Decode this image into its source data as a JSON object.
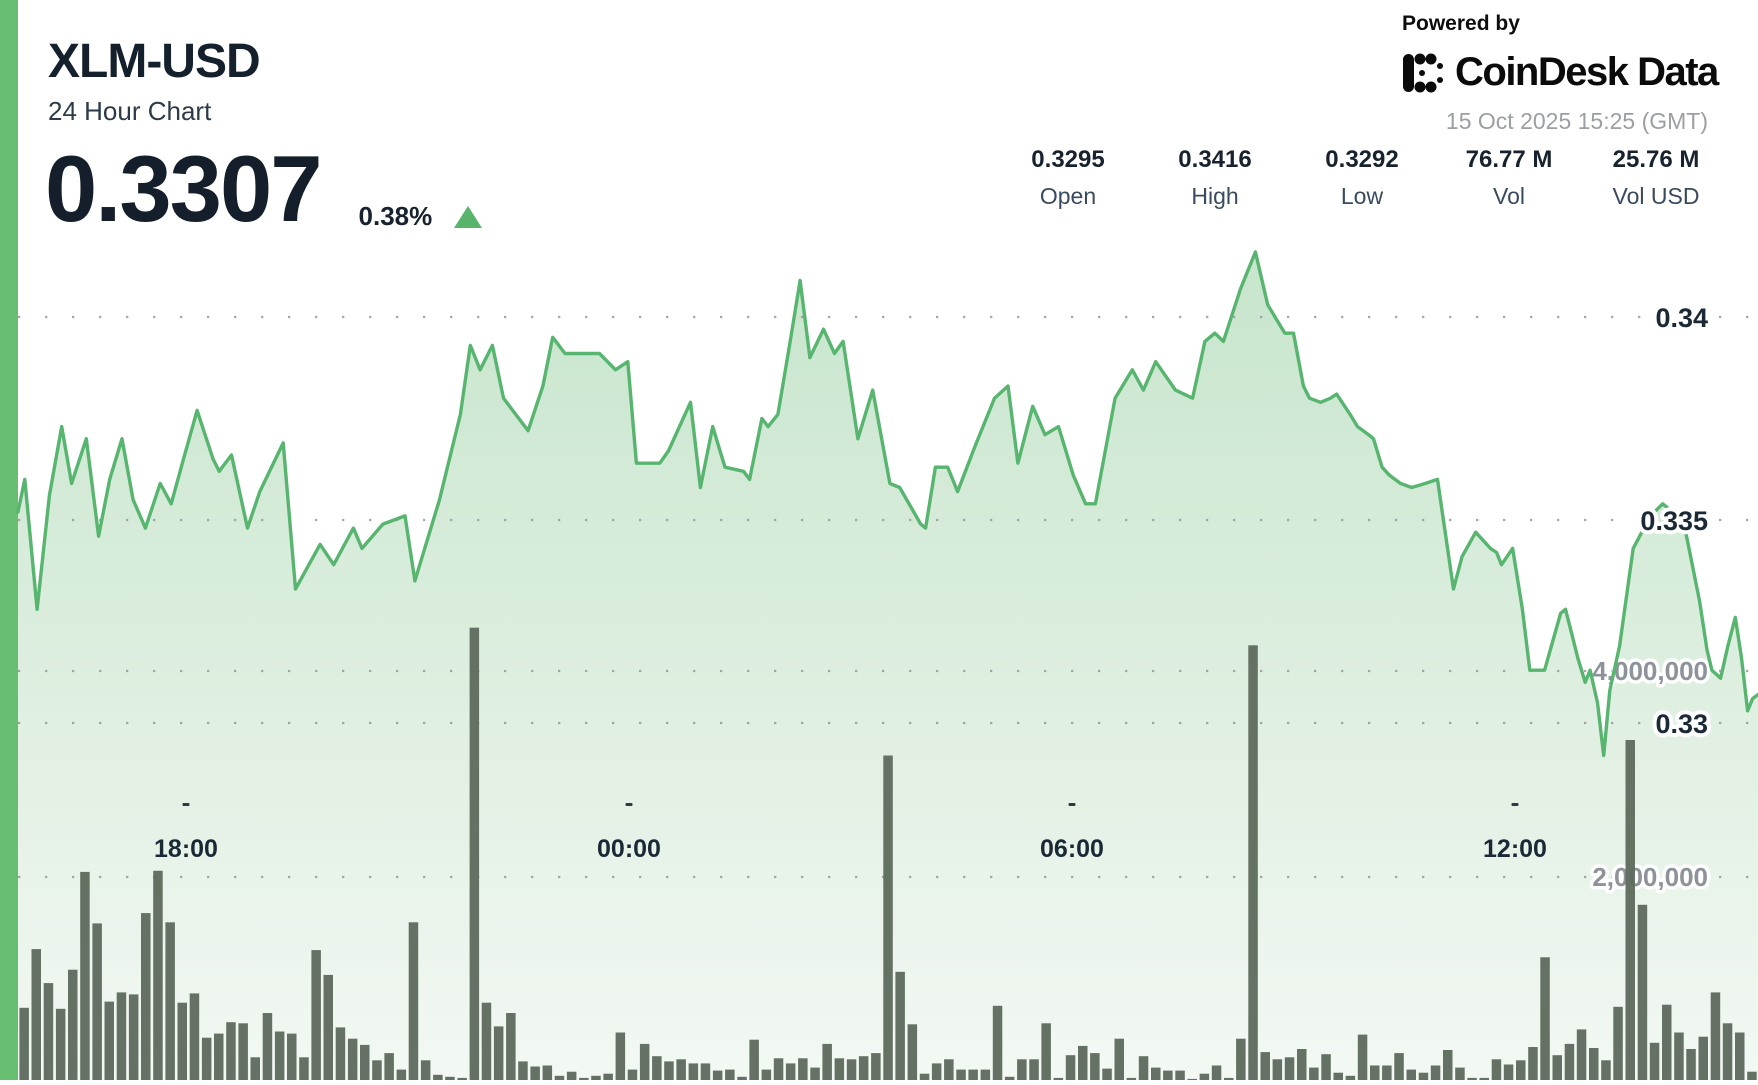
{
  "header": {
    "symbol": "XLM-USD",
    "subtitle": "24 Hour Chart",
    "price": "0.3307",
    "change_percent": "0.38%",
    "change_direction": "up"
  },
  "branding": {
    "powered_by": "Powered by",
    "logo_text": "CoinDesk Data",
    "timestamp": "15 Oct 2025 15:25 (GMT)"
  },
  "stats": [
    {
      "value": "0.3295",
      "label": "Open"
    },
    {
      "value": "0.3416",
      "label": "High"
    },
    {
      "value": "0.3292",
      "label": "Low"
    },
    {
      "value": "76.77 M",
      "label": "Vol"
    },
    {
      "value": "25.76 M",
      "label": "Vol USD"
    }
  ],
  "colors": {
    "accent_bar": "#67bd70",
    "line": "#57b56f",
    "area_top": "#c7e5cc",
    "area_bottom": "#f3f8f3",
    "volume_bar": "#5d6a5d",
    "grid_dot": "#97999b",
    "price_label": "#1b2836",
    "volume_label": "#8d939a",
    "timestamp": "#9b9fa4",
    "up_triangle": "#57b46a"
  },
  "chart_data": [
    {
      "type": "area",
      "name": "XLM-USD price, 24 hour window",
      "x_unit": "minutes since window start (15:25 GMT previous day)",
      "x_range": [
        18,
        1433
      ],
      "x_ticks": [
        {
          "label": "18:00",
          "t": 155
        },
        {
          "label": "00:00",
          "t": 515
        },
        {
          "label": "06:00",
          "t": 875
        },
        {
          "label": "12:00",
          "t": 1235
        }
      ],
      "y_axis_side": "right",
      "y_ticks": [
        {
          "label": "0.34",
          "value": 0.34
        },
        {
          "label": "0.335",
          "value": 0.335
        },
        {
          "label": "0.33",
          "value": 0.33
        }
      ],
      "grid": "dotted",
      "legend": "none",
      "points": [
        [
          18,
          0.3352
        ],
        [
          24,
          0.336
        ],
        [
          34,
          0.3328
        ],
        [
          44,
          0.3356
        ],
        [
          54,
          0.3373
        ],
        [
          62,
          0.3359
        ],
        [
          74,
          0.337
        ],
        [
          84,
          0.3346
        ],
        [
          93,
          0.336
        ],
        [
          103,
          0.337
        ],
        [
          112,
          0.3355
        ],
        [
          122,
          0.3348
        ],
        [
          134,
          0.3359
        ],
        [
          143,
          0.3354
        ],
        [
          153,
          0.3365
        ],
        [
          164,
          0.3377
        ],
        [
          177,
          0.3365
        ],
        [
          182,
          0.3362
        ],
        [
          192,
          0.3366
        ],
        [
          205,
          0.3348
        ],
        [
          215,
          0.3357
        ],
        [
          234,
          0.3369
        ],
        [
          244,
          0.3333
        ],
        [
          264,
          0.3344
        ],
        [
          275,
          0.3339
        ],
        [
          291,
          0.3348
        ],
        [
          298,
          0.3343
        ],
        [
          315,
          0.3349
        ],
        [
          333,
          0.3351
        ],
        [
          341,
          0.3335
        ],
        [
          361,
          0.3355
        ],
        [
          378,
          0.3376
        ],
        [
          386,
          0.3393
        ],
        [
          394,
          0.3387
        ],
        [
          404,
          0.3393
        ],
        [
          413,
          0.338
        ],
        [
          433,
          0.3372
        ],
        [
          445,
          0.3383
        ],
        [
          453,
          0.3395
        ],
        [
          463,
          0.3391
        ],
        [
          475,
          0.3391
        ],
        [
          491,
          0.3391
        ],
        [
          504,
          0.3387
        ],
        [
          514,
          0.3389
        ],
        [
          521,
          0.3364
        ],
        [
          540,
          0.3364
        ],
        [
          547,
          0.3367
        ],
        [
          565,
          0.3379
        ],
        [
          573,
          0.3358
        ],
        [
          583,
          0.3373
        ],
        [
          593,
          0.3363
        ],
        [
          608,
          0.3362
        ],
        [
          613,
          0.336
        ],
        [
          623,
          0.3375
        ],
        [
          628,
          0.3373
        ],
        [
          636,
          0.3376
        ],
        [
          646,
          0.3394
        ],
        [
          654,
          0.3409
        ],
        [
          662,
          0.339
        ],
        [
          673,
          0.3397
        ],
        [
          682,
          0.3391
        ],
        [
          689,
          0.3394
        ],
        [
          701,
          0.337
        ],
        [
          713,
          0.3382
        ],
        [
          727,
          0.3359
        ],
        [
          735,
          0.3358
        ],
        [
          752,
          0.3349
        ],
        [
          756,
          0.3348
        ],
        [
          764,
          0.3363
        ],
        [
          774,
          0.3363
        ],
        [
          782,
          0.3357
        ],
        [
          796,
          0.3368
        ],
        [
          812,
          0.338
        ],
        [
          823,
          0.3383
        ],
        [
          831,
          0.3364
        ],
        [
          843,
          0.3378
        ],
        [
          853,
          0.3371
        ],
        [
          864,
          0.3373
        ],
        [
          876,
          0.3361
        ],
        [
          886,
          0.3354
        ],
        [
          894,
          0.3354
        ],
        [
          910,
          0.338
        ],
        [
          924,
          0.3387
        ],
        [
          933,
          0.3382
        ],
        [
          943,
          0.3389
        ],
        [
          959,
          0.3382
        ],
        [
          973,
          0.338
        ],
        [
          983,
          0.3394
        ],
        [
          991,
          0.3396
        ],
        [
          998,
          0.3394
        ],
        [
          1012,
          0.3407
        ],
        [
          1024,
          0.3416
        ],
        [
          1034,
          0.3403
        ],
        [
          1042,
          0.3399
        ],
        [
          1048,
          0.3396
        ],
        [
          1055,
          0.3396
        ],
        [
          1063,
          0.3383
        ],
        [
          1068,
          0.338
        ],
        [
          1077,
          0.3379
        ],
        [
          1085,
          0.338
        ],
        [
          1090,
          0.3381
        ],
        [
          1101,
          0.3376
        ],
        [
          1107,
          0.3373
        ],
        [
          1116,
          0.3371
        ],
        [
          1120,
          0.337
        ],
        [
          1127,
          0.3363
        ],
        [
          1133,
          0.3361
        ],
        [
          1142,
          0.3359
        ],
        [
          1151,
          0.3358
        ],
        [
          1162,
          0.3359
        ],
        [
          1172,
          0.336
        ],
        [
          1183,
          0.3337
        ],
        [
          1185,
          0.3333
        ],
        [
          1192,
          0.3341
        ],
        [
          1203,
          0.3347
        ],
        [
          1215,
          0.3343
        ],
        [
          1220,
          0.3342
        ],
        [
          1224,
          0.3339
        ],
        [
          1233,
          0.3343
        ],
        [
          1241,
          0.3328
        ],
        [
          1247,
          0.3313
        ],
        [
          1259,
          0.3313
        ],
        [
          1272,
          0.3327
        ],
        [
          1276,
          0.3328
        ],
        [
          1281,
          0.3322
        ],
        [
          1286,
          0.3316
        ],
        [
          1292,
          0.331
        ],
        [
          1296,
          0.3313
        ],
        [
          1302,
          0.3305
        ],
        [
          1307,
          0.3292
        ],
        [
          1312,
          0.3308
        ],
        [
          1320,
          0.3319
        ],
        [
          1331,
          0.3343
        ],
        [
          1345,
          0.3351
        ],
        [
          1355,
          0.3354
        ],
        [
          1359,
          0.3353
        ],
        [
          1365,
          0.335
        ],
        [
          1373,
          0.3348
        ],
        [
          1385,
          0.333
        ],
        [
          1391,
          0.3318
        ],
        [
          1395,
          0.3313
        ],
        [
          1402,
          0.3311
        ],
        [
          1408,
          0.3319
        ],
        [
          1414,
          0.3326
        ],
        [
          1419,
          0.3316
        ],
        [
          1424,
          0.3303
        ],
        [
          1428,
          0.3306
        ],
        [
          1433,
          0.3307
        ]
      ]
    },
    {
      "type": "bar",
      "name": "Volume (units of XLM, millions)",
      "interval_minutes": 10,
      "y_axis_side": "right",
      "y_ticks": [
        {
          "label": "4,000,000",
          "value": 4
        },
        {
          "label": "2,000,000",
          "value": 2
        }
      ],
      "values_millions": [
        0.73,
        1.3,
        0.97,
        0.72,
        1.1,
        2.05,
        1.55,
        0.79,
        0.88,
        0.86,
        1.65,
        2.06,
        1.56,
        0.78,
        0.87,
        0.44,
        0.48,
        0.59,
        0.58,
        0.25,
        0.68,
        0.5,
        0.48,
        0.25,
        1.29,
        1.05,
        0.54,
        0.43,
        0.37,
        0.22,
        0.29,
        0.13,
        1.56,
        0.22,
        0.08,
        0.06,
        0.05,
        4.42,
        0.78,
        0.55,
        0.68,
        0.21,
        0.16,
        0.17,
        0.07,
        0.11,
        0.05,
        0.07,
        0.09,
        0.49,
        0.13,
        0.38,
        0.26,
        0.21,
        0.23,
        0.19,
        0.19,
        0.12,
        0.13,
        0.06,
        0.42,
        0.13,
        0.24,
        0.19,
        0.24,
        0.15,
        0.38,
        0.24,
        0.23,
        0.26,
        0.29,
        3.18,
        1.08,
        0.57,
        0.09,
        0.19,
        0.23,
        0.13,
        0.13,
        0.13,
        0.75,
        0.06,
        0.23,
        0.23,
        0.58,
        0.05,
        0.27,
        0.36,
        0.29,
        0.14,
        0.43,
        0.05,
        0.26,
        0.15,
        0.12,
        0.12,
        0.04,
        0.09,
        0.17,
        0.05,
        0.43,
        4.25,
        0.3,
        0.23,
        0.25,
        0.33,
        0.15,
        0.28,
        0.1,
        0.07,
        0.47,
        0.17,
        0.17,
        0.29,
        0.13,
        0.1,
        0.17,
        0.32,
        0.15,
        0.05,
        0.05,
        0.23,
        0.18,
        0.22,
        0.35,
        1.22,
        0.27,
        0.38,
        0.52,
        0.34,
        0.22,
        0.74,
        3.33,
        1.73,
        0.39,
        0.76,
        0.49,
        0.33,
        0.45,
        0.88,
        0.58,
        0.49,
        0.11
      ]
    }
  ]
}
